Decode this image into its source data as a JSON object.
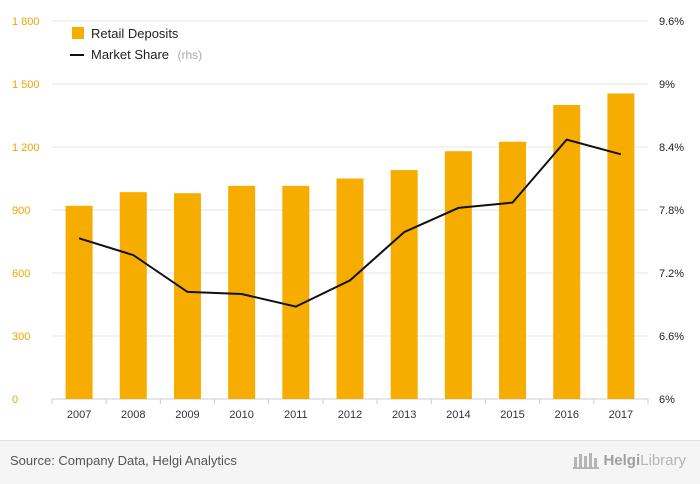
{
  "chart_data": {
    "type": "bar",
    "categories": [
      "2007",
      "2008",
      "2009",
      "2010",
      "2011",
      "2012",
      "2013",
      "2014",
      "2015",
      "2016",
      "2017"
    ],
    "series": [
      {
        "name": "Retail Deposits",
        "type": "bar",
        "axis": "left",
        "color": "#f7ad00",
        "values": [
          920,
          985,
          980,
          1015,
          1015,
          1050,
          1090,
          1180,
          1225,
          1400,
          1455
        ]
      },
      {
        "name": "Market Share",
        "type": "line",
        "axis": "right",
        "color": "#111111",
        "values": [
          7.53,
          7.37,
          7.02,
          7.0,
          6.88,
          7.13,
          7.59,
          7.82,
          7.87,
          8.47,
          8.33
        ]
      }
    ],
    "left_axis": {
      "min": 0,
      "max": 1800,
      "ticks": [
        0,
        300,
        600,
        900,
        1200,
        1500,
        1800
      ],
      "tick_labels": [
        "0",
        "300",
        "600",
        "900",
        "1 200",
        "1 500",
        "1 800"
      ]
    },
    "right_axis": {
      "min": 6.0,
      "max": 9.6,
      "ticks": [
        6.0,
        6.6,
        7.2,
        7.8,
        8.4,
        9.0,
        9.6
      ],
      "tick_labels": [
        "6%",
        "6.6%",
        "7.2%",
        "7.8%",
        "8.4%",
        "9%",
        "9.6%"
      ]
    },
    "legend": {
      "position": "top-left",
      "items": [
        {
          "label": "Retail Deposits",
          "suffix": ""
        },
        {
          "label": "Market Share",
          "suffix": "(rhs)"
        }
      ]
    }
  },
  "footer": {
    "source": "Source: Company Data, Helgi Analytics",
    "brand_a": "Helgi",
    "brand_b": "Library"
  },
  "colors": {
    "accent": "#f7ad00",
    "line": "#111111"
  }
}
